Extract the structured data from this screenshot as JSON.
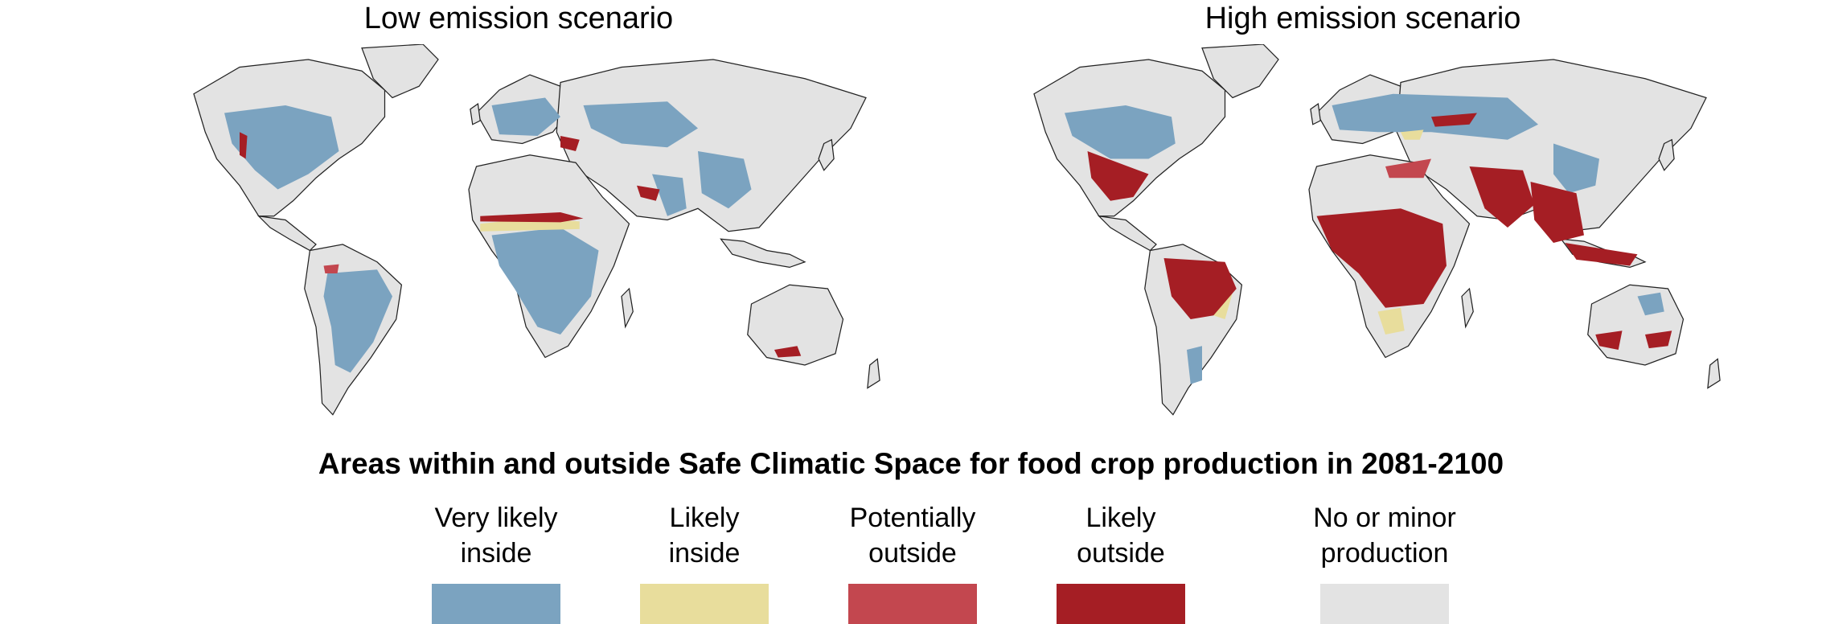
{
  "panels": [
    {
      "title": "Low emission scenario"
    },
    {
      "title": "High emission scenario"
    }
  ],
  "legend": {
    "title": "Areas within and outside Safe Climatic Space for food crop production in 2081-2100",
    "items": [
      {
        "label": "Very likely\ninside",
        "color": "#7ba3c0"
      },
      {
        "label": "Likely\ninside",
        "color": "#e8dd9c"
      },
      {
        "label": "Potentially\noutside",
        "color": "#c3474f"
      },
      {
        "label": "Likely\noutside",
        "color": "#a51e24"
      },
      {
        "label": "No or minor\nproduction",
        "color": "#e3e3e3"
      }
    ]
  }
}
